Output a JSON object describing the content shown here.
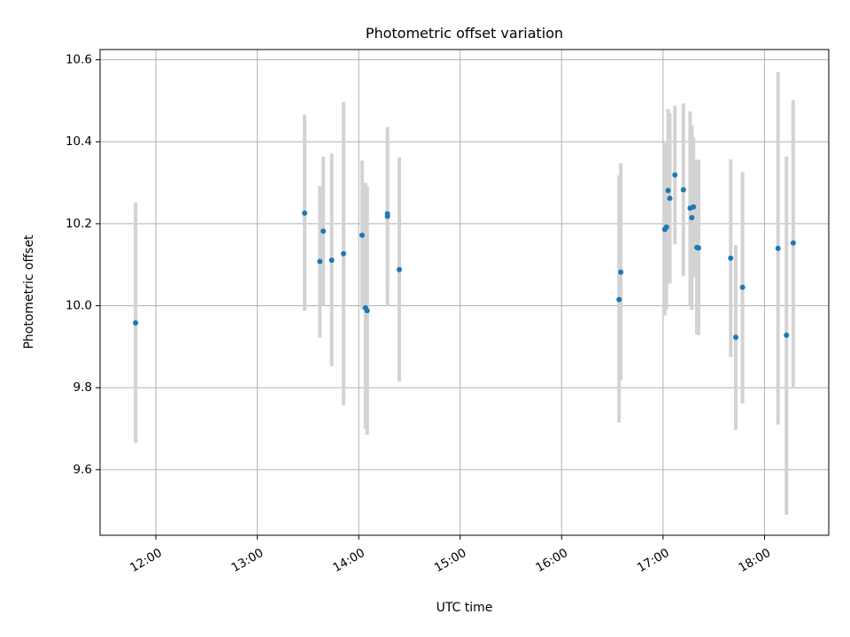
{
  "chart_data": {
    "type": "scatter",
    "title": "Photometric offset variation",
    "xlabel": "UTC time",
    "ylabel": "Photometric offset",
    "x_axis_type": "time",
    "xlim": [
      "11:27",
      "18:38"
    ],
    "ylim": [
      9.44,
      10.625
    ],
    "x_ticks": [
      "12:00",
      "13:00",
      "14:00",
      "15:00",
      "16:00",
      "17:00",
      "18:00"
    ],
    "y_ticks": [
      "9.6",
      "9.8",
      "10.0",
      "10.2",
      "10.4",
      "10.6"
    ],
    "grid": true,
    "point_color": "#1f77b4",
    "errorbar_color": "#d3d3d3",
    "points": [
      {
        "x": "11:48",
        "y": 9.958,
        "ylow": 9.665,
        "yhigh": 10.252
      },
      {
        "x": "13:28",
        "y": 10.226,
        "ylow": 9.988,
        "yhigh": 10.466
      },
      {
        "x": "13:37",
        "y": 10.108,
        "ylow": 9.922,
        "yhigh": 10.292
      },
      {
        "x": "13:39",
        "y": 10.182,
        "ylow": 10.0,
        "yhigh": 10.364
      },
      {
        "x": "13:44",
        "y": 10.111,
        "ylow": 9.852,
        "yhigh": 10.371
      },
      {
        "x": "13:51",
        "y": 10.127,
        "ylow": 9.757,
        "yhigh": 10.497
      },
      {
        "x": "14:02",
        "y": 10.172,
        "ylow": 9.99,
        "yhigh": 10.354
      },
      {
        "x": "14:04",
        "y": 9.995,
        "ylow": 9.7,
        "yhigh": 10.3
      },
      {
        "x": "14:05",
        "y": 9.988,
        "ylow": 9.685,
        "yhigh": 10.291
      },
      {
        "x": "14:17",
        "y": 10.218,
        "ylow": 10.0,
        "yhigh": 10.436
      },
      {
        "x": "14:17",
        "y": 10.224,
        "ylow": 10.05,
        "yhigh": 10.4
      },
      {
        "x": "14:24",
        "y": 10.088,
        "ylow": 9.815,
        "yhigh": 10.362
      },
      {
        "x": "16:34",
        "y": 10.015,
        "ylow": 9.715,
        "yhigh": 10.318
      },
      {
        "x": "16:35",
        "y": 10.082,
        "ylow": 9.818,
        "yhigh": 10.348
      },
      {
        "x": "17:01",
        "y": 10.186,
        "ylow": 9.976,
        "yhigh": 10.396
      },
      {
        "x": "17:02",
        "y": 10.192,
        "ylow": 9.99,
        "yhigh": 10.4
      },
      {
        "x": "17:03",
        "y": 10.281,
        "ylow": 10.08,
        "yhigh": 10.48
      },
      {
        "x": "17:04",
        "y": 10.262,
        "ylow": 10.054,
        "yhigh": 10.47
      },
      {
        "x": "17:07",
        "y": 10.319,
        "ylow": 10.15,
        "yhigh": 10.488
      },
      {
        "x": "17:12",
        "y": 10.283,
        "ylow": 10.072,
        "yhigh": 10.494
      },
      {
        "x": "17:16",
        "y": 10.238,
        "ylow": 10.0,
        "yhigh": 10.474
      },
      {
        "x": "17:17",
        "y": 10.215,
        "ylow": 9.99,
        "yhigh": 10.44
      },
      {
        "x": "17:18",
        "y": 10.241,
        "ylow": 10.07,
        "yhigh": 10.41
      },
      {
        "x": "17:20",
        "y": 10.142,
        "ylow": 9.93,
        "yhigh": 10.356
      },
      {
        "x": "17:21",
        "y": 10.141,
        "ylow": 9.928,
        "yhigh": 10.356
      },
      {
        "x": "17:40",
        "y": 10.116,
        "ylow": 9.875,
        "yhigh": 10.357
      },
      {
        "x": "17:43",
        "y": 9.923,
        "ylow": 9.697,
        "yhigh": 10.148
      },
      {
        "x": "17:47",
        "y": 10.045,
        "ylow": 9.762,
        "yhigh": 10.326
      },
      {
        "x": "18:08",
        "y": 10.14,
        "ylow": 9.71,
        "yhigh": 10.57
      },
      {
        "x": "18:13",
        "y": 9.928,
        "ylow": 9.49,
        "yhigh": 10.364
      },
      {
        "x": "18:17",
        "y": 10.153,
        "ylow": 9.802,
        "yhigh": 10.502
      }
    ]
  }
}
